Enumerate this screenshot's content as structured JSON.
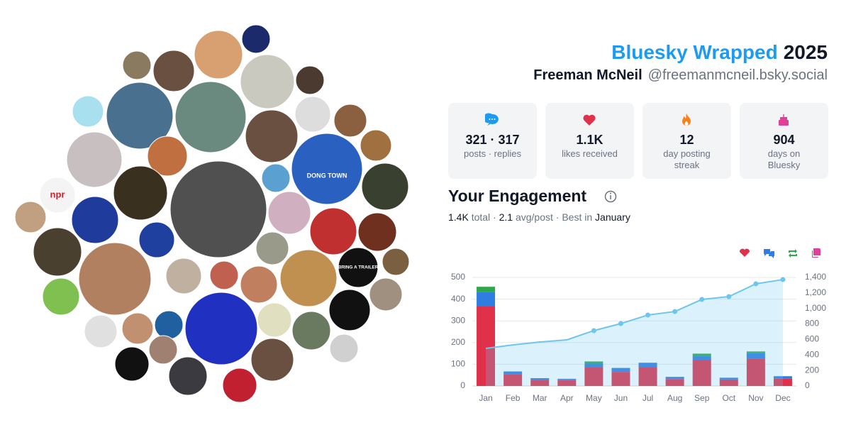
{
  "header": {
    "title": "Bluesky Wrapped",
    "year": "2025",
    "name": "Freeman McNeil",
    "handle": "@freemanmcneil.bsky.social"
  },
  "avatar_texts": [
    "npr",
    "BRING A TRAILER",
    "DONG TOWN"
  ],
  "stats": [
    {
      "value": "321 · 317",
      "label": "posts · replies",
      "color": "#1d9bf0"
    },
    {
      "value": "1.1K",
      "label": "likes received",
      "color": "#e0314b"
    },
    {
      "value": "12",
      "label": "day posting streak",
      "color": "#f5811f"
    },
    {
      "value": "904",
      "label": "days on Bluesky",
      "color": "#e0409a"
    }
  ],
  "engagement": {
    "title": "Your Engagement",
    "summary": [
      "1.4K",
      " total · ",
      "2.1",
      " avg/post · Best in ",
      "January"
    ]
  },
  "chart_data": {
    "type": "bar",
    "stacked": true,
    "categories": [
      "Jan",
      "Feb",
      "Mar",
      "Apr",
      "May",
      "Jun",
      "Jul",
      "Aug",
      "Sep",
      "Oct",
      "Nov",
      "Dec"
    ],
    "series": [
      {
        "color": "#e0314b",
        "values": [
          369,
          55,
          28,
          27,
          88,
          65,
          85,
          32,
          121,
          30,
          127,
          35
        ]
      },
      {
        "color": "#2f7de1",
        "values": [
          65,
          12,
          8,
          6,
          15,
          18,
          22,
          10,
          16,
          8,
          26,
          10
        ]
      },
      {
        "color": "#2ea84a",
        "values": [
          23,
          0,
          0,
          0,
          10,
          0,
          0,
          0,
          12,
          0,
          6,
          0
        ]
      },
      {
        "color": "#e0409a",
        "values": [
          0,
          0,
          0,
          0,
          0,
          0,
          0,
          0,
          0,
          0,
          0,
          0
        ]
      },
      {
        "type": "line",
        "axis": "y2",
        "color": "#6ec6ee",
        "values": [
          485,
          530,
          567,
          595,
          714,
          805,
          915,
          960,
          1116,
          1153,
          1318,
          1372
        ]
      }
    ],
    "ylim": [
      0,
      500
    ],
    "yticks": [
      0,
      100,
      200,
      300,
      400,
      500
    ],
    "y2lim": [
      0,
      1400
    ],
    "y2ticks": [
      0,
      200,
      400,
      600,
      800,
      {
        "value": 1000,
        "label": "1,000"
      },
      {
        "value": 1200,
        "label": "1,200"
      },
      {
        "value": 1400,
        "label": "1,400"
      }
    ],
    "grid": true
  }
}
